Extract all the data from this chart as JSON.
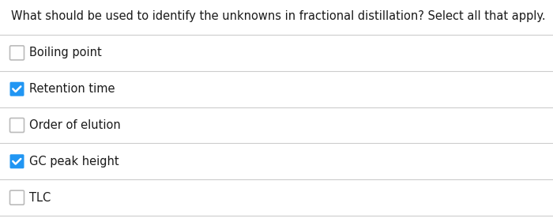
{
  "title": "What should be used to identify the unknowns in fractional distillation? Select all that apply.",
  "options": [
    {
      "label": "Boiling point",
      "checked": false
    },
    {
      "label": "Retention time",
      "checked": true
    },
    {
      "label": "Order of elution",
      "checked": false
    },
    {
      "label": "GC peak height",
      "checked": true
    },
    {
      "label": "TLC",
      "checked": false
    }
  ],
  "bg_color": "#ffffff",
  "text_color": "#1a1a1a",
  "line_color": "#cccccc",
  "checked_color": "#2196F3",
  "unchecked_border": "#bbbbbb",
  "title_fontsize": 10.5,
  "option_fontsize": 10.5,
  "fig_width": 7.0,
  "fig_height": 2.81,
  "dpi": 100
}
